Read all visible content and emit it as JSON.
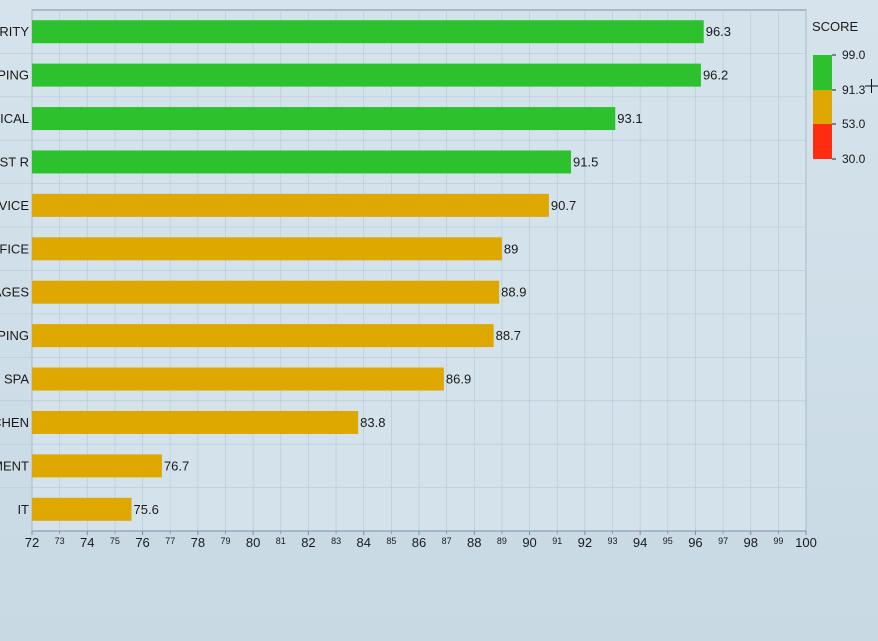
{
  "chart_data": {
    "type": "bar",
    "orientation": "horizontal",
    "categories": [
      "URITY",
      "APING",
      "NICAL",
      "UEST R",
      "RVICE",
      "FFICE",
      "AGES",
      "EPING",
      "SPA",
      "CHEN",
      "MENT",
      "IT"
    ],
    "values": [
      96.3,
      96.2,
      93.1,
      91.5,
      90.7,
      89,
      88.9,
      88.7,
      86.9,
      83.8,
      76.7,
      75.6
    ],
    "value_labels": [
      "96.3",
      "96.2",
      "93.1",
      "91.5",
      "90.7",
      "89",
      "88.9",
      "88.7",
      "86.9",
      "83.8",
      "76.7",
      "75.6"
    ],
    "xlim": [
      72,
      100
    ],
    "major_ticks": [
      "72",
      "74",
      "76",
      "78",
      "80",
      "82",
      "84",
      "86",
      "88",
      "90",
      "92",
      "94",
      "96",
      "98",
      "100"
    ],
    "minor_ticks": [
      "73",
      "75",
      "77",
      "79",
      "81",
      "83",
      "85",
      "87",
      "89",
      "91",
      "93",
      "95",
      "97",
      "99"
    ],
    "grid": true,
    "legend": {
      "title": "SCORE",
      "placement": "right",
      "stops": [
        "99.0",
        "91.3",
        "53.0",
        "30.0"
      ],
      "bands": [
        {
          "from": 91.3,
          "to": 99.0,
          "color": "#2dc22d"
        },
        {
          "from": 53.0,
          "to": 91.3,
          "color": "#dea800"
        },
        {
          "from": 30.0,
          "to": 53.0,
          "color": "#ff2c10"
        }
      ]
    },
    "thresholds": [
      {
        "min": 91.3,
        "color": "#2dc22d"
      },
      {
        "min": 53.0,
        "color": "#dea800"
      },
      {
        "min": 30.0,
        "color": "#ff2c10"
      }
    ]
  },
  "colors": {
    "plot_bg": "#d4e2eb",
    "grid": "#b9ccd9",
    "axis": "#7d8fa6"
  },
  "icons": {
    "cursor": "crosshair-cursor-icon"
  }
}
